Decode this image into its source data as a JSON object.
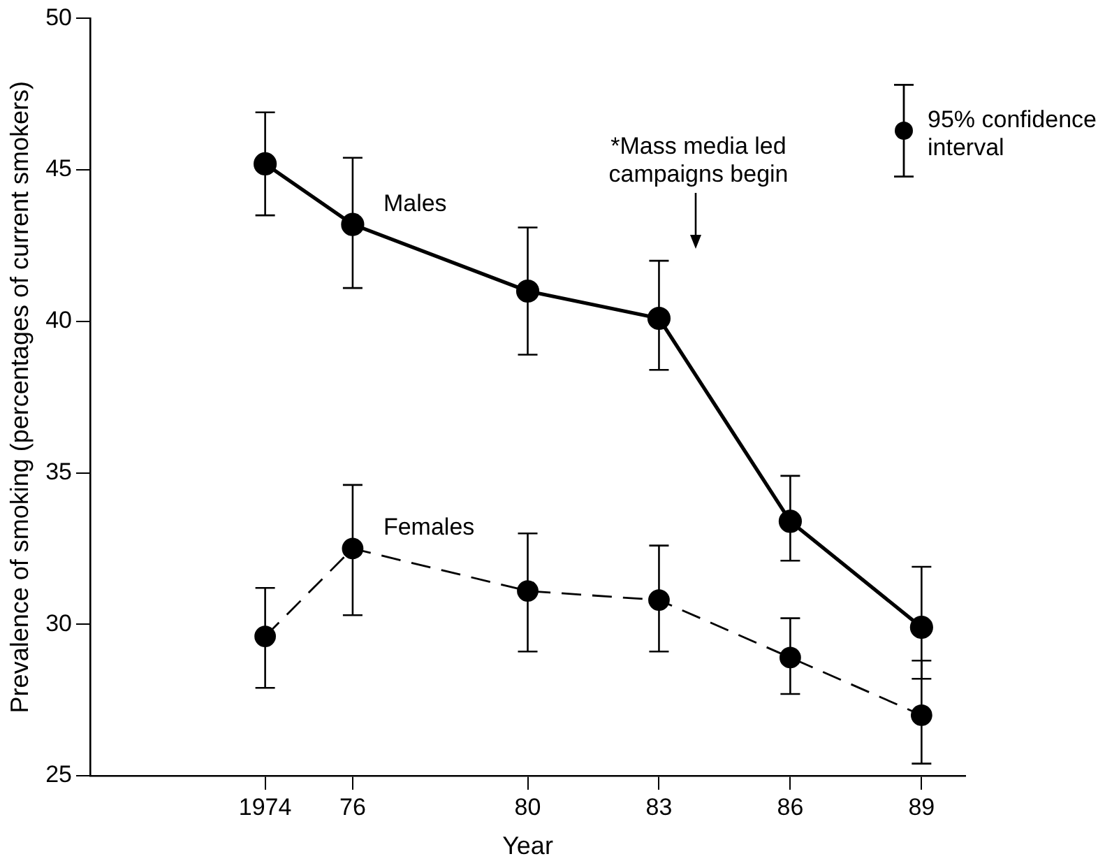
{
  "chart_data": {
    "type": "line",
    "xlabel": "Year",
    "ylabel": "Prevalence of smoking (percentages of current smokers)",
    "x": [
      1974,
      1976,
      1980,
      1983,
      1986,
      1989
    ],
    "xlim": [
      1970,
      1990
    ],
    "xticks": [
      1974,
      {
        "value": 1976,
        "label": "76"
      },
      {
        "value": 1980,
        "label": "80"
      },
      {
        "value": 1983,
        "label": "83"
      },
      {
        "value": 1986,
        "label": "86"
      },
      {
        "value": 1989,
        "label": "89"
      }
    ],
    "ylim": [
      25,
      50
    ],
    "yticks": [
      25,
      30,
      35,
      40,
      45,
      50
    ],
    "series": [
      {
        "name": "Males",
        "color": "#000000",
        "line_style": "solid",
        "values": [
          45.2,
          43.2,
          41.0,
          40.1,
          33.4,
          29.9
        ],
        "errors": [
          [
            43.5,
            46.9
          ],
          [
            41.1,
            45.4
          ],
          [
            38.9,
            43.1
          ],
          [
            38.4,
            42.0
          ],
          [
            32.1,
            34.9
          ],
          [
            28.2,
            31.9
          ]
        ]
      },
      {
        "name": "Females",
        "color": "#000000",
        "line_style": "dashed",
        "values": [
          29.6,
          32.5,
          31.1,
          30.8,
          28.9,
          27.0
        ],
        "errors": [
          [
            27.9,
            31.2
          ],
          [
            30.3,
            34.6
          ],
          [
            29.1,
            33.0
          ],
          [
            29.1,
            32.6
          ],
          [
            27.7,
            30.2
          ],
          [
            25.4,
            28.8
          ]
        ]
      }
    ],
    "marker": "circle",
    "grid": false,
    "legend": false,
    "annotations": [
      "*Mass media led campaigns begin",
      "95% confidence interval"
    ]
  }
}
